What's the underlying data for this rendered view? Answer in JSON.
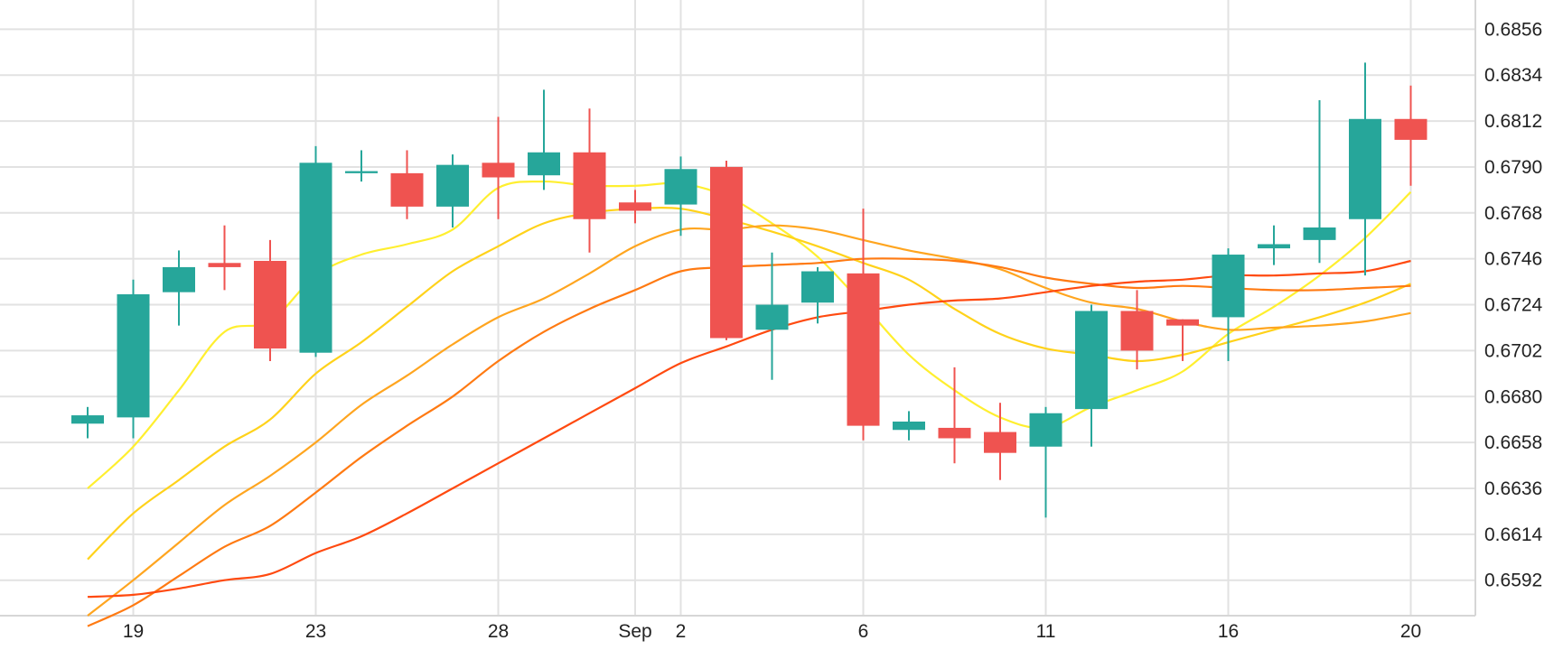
{
  "colors": {
    "up": "#26a69a",
    "down": "#ef5350",
    "grid": "#e2e2e2",
    "axis_line": "#d6d6d6",
    "text": "#222222",
    "ma": [
      "#ffef2f",
      "#ffd21a",
      "#ffa51f",
      "#ff7a12",
      "#ff4a10"
    ]
  },
  "chart_data": {
    "type": "candlestick",
    "title": "",
    "xlabel": "",
    "ylabel": "",
    "ylim": [
      0.6575,
      0.687
    ],
    "grid": true,
    "y_ticks": [
      0.6856,
      0.6834,
      0.6812,
      0.679,
      0.6768,
      0.6746,
      0.6724,
      0.6702,
      0.668,
      0.6658,
      0.6636,
      0.6614,
      0.6592
    ],
    "x_ticks": [
      {
        "label": "19",
        "pos": 1
      },
      {
        "label": "23",
        "pos": 5
      },
      {
        "label": "28",
        "pos": 9
      },
      {
        "label": "Sep",
        "pos": 12
      },
      {
        "label": "2",
        "pos": 13
      },
      {
        "label": "6",
        "pos": 17
      },
      {
        "label": "11",
        "pos": 21
      },
      {
        "label": "16",
        "pos": 25
      },
      {
        "label": "20",
        "pos": 29
      }
    ],
    "x_range": [
      -1,
      30.7
    ],
    "candles": [
      {
        "o": 0.6667,
        "h": 0.6675,
        "l": 0.666,
        "c": 0.6671
      },
      {
        "o": 0.667,
        "h": 0.6736,
        "l": 0.666,
        "c": 0.6729
      },
      {
        "o": 0.673,
        "h": 0.675,
        "l": 0.6714,
        "c": 0.6742
      },
      {
        "o": 0.6744,
        "h": 0.6762,
        "l": 0.6731,
        "c": 0.6742
      },
      {
        "o": 0.6745,
        "h": 0.6755,
        "l": 0.6697,
        "c": 0.6703
      },
      {
        "o": 0.6701,
        "h": 0.68,
        "l": 0.6699,
        "c": 0.6792
      },
      {
        "o": 0.6787,
        "h": 0.6798,
        "l": 0.6783,
        "c": 0.6788
      },
      {
        "o": 0.6787,
        "h": 0.6798,
        "l": 0.6765,
        "c": 0.6771
      },
      {
        "o": 0.6771,
        "h": 0.6796,
        "l": 0.6761,
        "c": 0.6791
      },
      {
        "o": 0.6792,
        "h": 0.6814,
        "l": 0.6765,
        "c": 0.6785
      },
      {
        "o": 0.6786,
        "h": 0.6827,
        "l": 0.6779,
        "c": 0.6797
      },
      {
        "o": 0.6797,
        "h": 0.6818,
        "l": 0.6749,
        "c": 0.6765
      },
      {
        "o": 0.6773,
        "h": 0.6779,
        "l": 0.6763,
        "c": 0.6769
      },
      {
        "o": 0.6772,
        "h": 0.6795,
        "l": 0.6757,
        "c": 0.6789
      },
      {
        "o": 0.679,
        "h": 0.6793,
        "l": 0.6707,
        "c": 0.6708
      },
      {
        "o": 0.6712,
        "h": 0.6749,
        "l": 0.6688,
        "c": 0.6724
      },
      {
        "o": 0.6725,
        "h": 0.6742,
        "l": 0.6715,
        "c": 0.674
      },
      {
        "o": 0.6739,
        "h": 0.677,
        "l": 0.6659,
        "c": 0.6666
      },
      {
        "o": 0.6664,
        "h": 0.6673,
        "l": 0.6659,
        "c": 0.6668
      },
      {
        "o": 0.6665,
        "h": 0.6694,
        "l": 0.6648,
        "c": 0.666
      },
      {
        "o": 0.6663,
        "h": 0.6677,
        "l": 0.664,
        "c": 0.6653
      },
      {
        "o": 0.6656,
        "h": 0.6675,
        "l": 0.6622,
        "c": 0.6672
      },
      {
        "o": 0.6674,
        "h": 0.6724,
        "l": 0.6656,
        "c": 0.6721
      },
      {
        "o": 0.6721,
        "h": 0.6731,
        "l": 0.6693,
        "c": 0.6702
      },
      {
        "o": 0.6717,
        "h": 0.6717,
        "l": 0.6697,
        "c": 0.6714
      },
      {
        "o": 0.6718,
        "h": 0.6751,
        "l": 0.6697,
        "c": 0.6748
      },
      {
        "o": 0.6751,
        "h": 0.6762,
        "l": 0.6743,
        "c": 0.6753
      },
      {
        "o": 0.6755,
        "h": 0.6822,
        "l": 0.6744,
        "c": 0.6761
      },
      {
        "o": 0.6765,
        "h": 0.684,
        "l": 0.6738,
        "c": 0.6813
      },
      {
        "o": 0.6813,
        "h": 0.6829,
        "l": 0.6781,
        "c": 0.6803
      }
    ],
    "moving_averages": [
      {
        "color_index": 0,
        "values": [
          0.6636,
          0.6656,
          0.6683,
          0.6711,
          0.6716,
          0.6738,
          0.6748,
          0.6753,
          0.676,
          0.678,
          0.6783,
          0.6781,
          0.6781,
          0.6782,
          0.6776,
          0.6763,
          0.6747,
          0.6724,
          0.67,
          0.6683,
          0.667,
          0.6665,
          0.6675,
          0.6683,
          0.6692,
          0.671,
          0.6723,
          0.6738,
          0.6756,
          0.6778
        ]
      },
      {
        "color_index": 1,
        "values": [
          0.6602,
          0.6624,
          0.664,
          0.6656,
          0.6669,
          0.6691,
          0.6706,
          0.6723,
          0.674,
          0.6752,
          0.6763,
          0.6768,
          0.677,
          0.677,
          0.6765,
          0.6759,
          0.6752,
          0.6744,
          0.6736,
          0.6722,
          0.671,
          0.6703,
          0.67,
          0.6697,
          0.67,
          0.6706,
          0.6712,
          0.6718,
          0.6725,
          0.6734
        ]
      },
      {
        "color_index": 2,
        "values": [
          0.6575,
          0.6592,
          0.661,
          0.6628,
          0.6642,
          0.6658,
          0.6676,
          0.669,
          0.6705,
          0.6718,
          0.6727,
          0.6739,
          0.6752,
          0.676,
          0.676,
          0.6762,
          0.676,
          0.6755,
          0.675,
          0.6746,
          0.6741,
          0.6732,
          0.6725,
          0.6722,
          0.6716,
          0.6712,
          0.6713,
          0.6714,
          0.6716,
          0.672
        ]
      },
      {
        "color_index": 3,
        "values": [
          0.657,
          0.658,
          0.6594,
          0.6608,
          0.6618,
          0.6634,
          0.6651,
          0.6666,
          0.668,
          0.6697,
          0.6711,
          0.6722,
          0.6731,
          0.674,
          0.6742,
          0.6743,
          0.6744,
          0.6746,
          0.6746,
          0.6745,
          0.6742,
          0.6737,
          0.6734,
          0.6732,
          0.6733,
          0.6732,
          0.6731,
          0.6731,
          0.6732,
          0.6733
        ]
      },
      {
        "color_index": 4,
        "values": [
          0.6584,
          0.6585,
          0.6588,
          0.6592,
          0.6595,
          0.6605,
          0.6613,
          0.6624,
          0.6636,
          0.6648,
          0.666,
          0.6672,
          0.6684,
          0.6696,
          0.6704,
          0.6712,
          0.6718,
          0.6721,
          0.6724,
          0.6726,
          0.6727,
          0.673,
          0.6733,
          0.6735,
          0.6736,
          0.6738,
          0.6738,
          0.6739,
          0.674,
          0.6745
        ]
      }
    ]
  }
}
